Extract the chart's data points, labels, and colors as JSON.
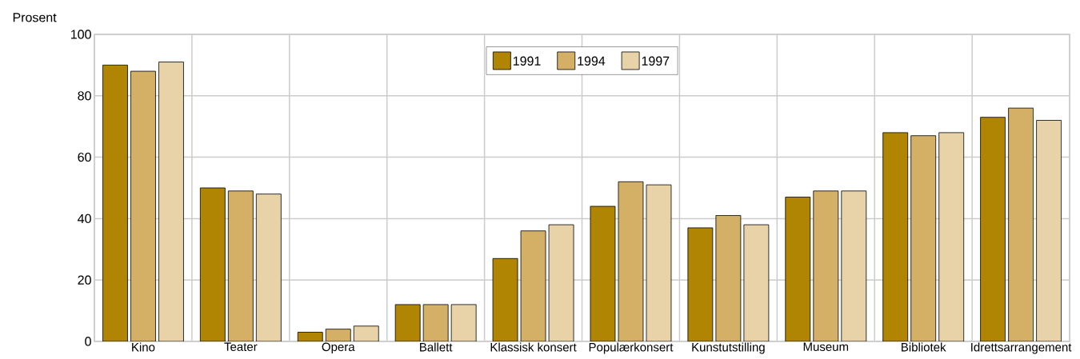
{
  "chart_data": {
    "type": "bar",
    "ylabel": "Prosent",
    "categories": [
      "Kino",
      "Teater",
      "Opera",
      "Ballett",
      "Klassisk konsert",
      "Populærkonsert",
      "Kunstutstilling",
      "Museum",
      "Bibliotek",
      "Idrettsarrangement"
    ],
    "series": [
      {
        "name": "1991",
        "color": "#b08504",
        "values": [
          90,
          50,
          3,
          12,
          27,
          44,
          37,
          47,
          68,
          73
        ]
      },
      {
        "name": "1994",
        "color": "#d3b066",
        "values": [
          88,
          49,
          4,
          12,
          36,
          52,
          41,
          49,
          67,
          76
        ]
      },
      {
        "name": "1997",
        "color": "#e8d3a9",
        "values": [
          91,
          48,
          5,
          12,
          38,
          51,
          38,
          49,
          68,
          72
        ]
      }
    ],
    "ylim": [
      0,
      100
    ],
    "yticks": [
      0,
      20,
      40,
      60,
      80,
      100
    ],
    "grid": true,
    "legend": "top"
  }
}
